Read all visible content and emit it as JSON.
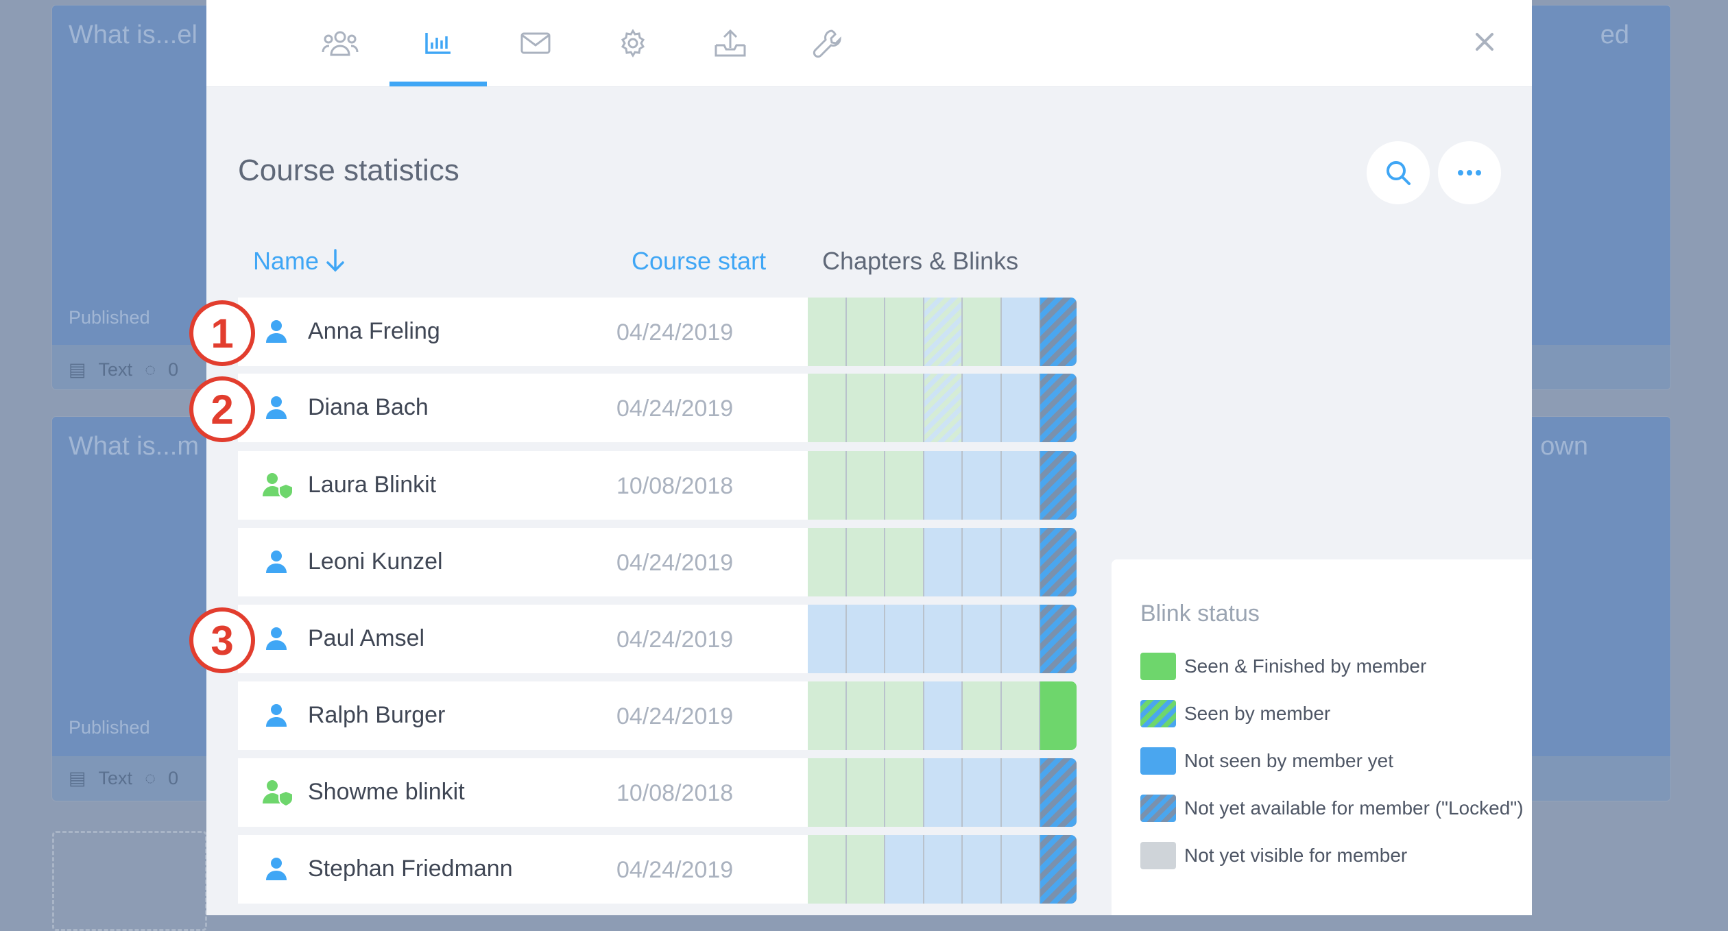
{
  "background": {
    "cards": [
      {
        "title": "What is...el",
        "status": "Published",
        "meta": "Text",
        "comments": "0"
      },
      {
        "title": "What is...m",
        "status": "Published",
        "meta": "Text",
        "comments": "0"
      }
    ],
    "right_titles": [
      "ed",
      "own"
    ]
  },
  "tabs": [
    {
      "icon": "members-icon",
      "active": false
    },
    {
      "icon": "statistics-icon",
      "active": true
    },
    {
      "icon": "mail-icon",
      "active": false
    },
    {
      "icon": "settings-gear-icon",
      "active": false
    },
    {
      "icon": "export-upload-icon",
      "active": false
    },
    {
      "icon": "wrench-icon",
      "active": false
    }
  ],
  "page_title": "Course statistics",
  "columns": {
    "name": "Name",
    "course_start": "Course start",
    "chapters": "Chapters & Blinks"
  },
  "rows": [
    {
      "name": "Anna Freling",
      "date": "04/24/2019",
      "role": "member",
      "marker": "1",
      "segments": [
        "finished",
        "finished",
        "finished",
        "seen",
        "finished",
        "notseen",
        "locked"
      ]
    },
    {
      "name": "Diana Bach",
      "date": "04/24/2019",
      "role": "member",
      "marker": "2",
      "segments": [
        "finished",
        "finished",
        "finished",
        "seen",
        "notseen",
        "notseen",
        "locked"
      ]
    },
    {
      "name": "Laura Blinkit",
      "date": "10/08/2018",
      "role": "admin",
      "marker": "",
      "segments": [
        "finished",
        "finished",
        "finished",
        "notseen",
        "notseen",
        "notseen",
        "locked"
      ]
    },
    {
      "name": "Leoni Kunzel",
      "date": "04/24/2019",
      "role": "member",
      "marker": "",
      "segments": [
        "finished",
        "finished",
        "finished",
        "notseen",
        "notseen",
        "notseen",
        "locked"
      ]
    },
    {
      "name": "Paul Amsel",
      "date": "04/24/2019",
      "role": "member",
      "marker": "3",
      "segments": [
        "notseen",
        "notseen",
        "notseen",
        "notseen",
        "notseen",
        "notseen",
        "locked"
      ]
    },
    {
      "name": "Ralph Burger",
      "date": "04/24/2019",
      "role": "member",
      "marker": "",
      "segments": [
        "finished",
        "finished",
        "finished",
        "notseen",
        "finished",
        "finished",
        "green"
      ]
    },
    {
      "name": "Showme blinkit",
      "date": "10/08/2018",
      "role": "admin",
      "marker": "",
      "segments": [
        "finished",
        "finished",
        "finished",
        "notseen",
        "notseen",
        "notseen",
        "locked"
      ]
    },
    {
      "name": "Stephan Friedmann",
      "date": "04/24/2019",
      "role": "member",
      "marker": "",
      "segments": [
        "finished",
        "finished",
        "notseen",
        "notseen",
        "notseen",
        "notseen",
        "locked"
      ]
    }
  ],
  "legend": {
    "title": "Blink status",
    "items": [
      {
        "label": "Seen & Finished by member",
        "swatch": "solid-green",
        "color": "#6ed66c"
      },
      {
        "label": "Seen by member",
        "swatch": "striped-green-blue",
        "color": "#4aa6ef"
      },
      {
        "label": "Not seen by member yet",
        "swatch": "solid-blue",
        "color": "#4aa6ef"
      },
      {
        "label": "Not yet available for member (\"Locked\")",
        "swatch": "striped-blue-gray",
        "color": "#7a91ad"
      },
      {
        "label": "Not yet visible for member",
        "swatch": "solid-gray",
        "color": "#cfd4d9"
      }
    ]
  },
  "colors": {
    "accent": "#3fa6f5",
    "marker": "#e23d2e",
    "admin_icon": "#6ed66c",
    "member_icon": "#3fa6f5"
  }
}
